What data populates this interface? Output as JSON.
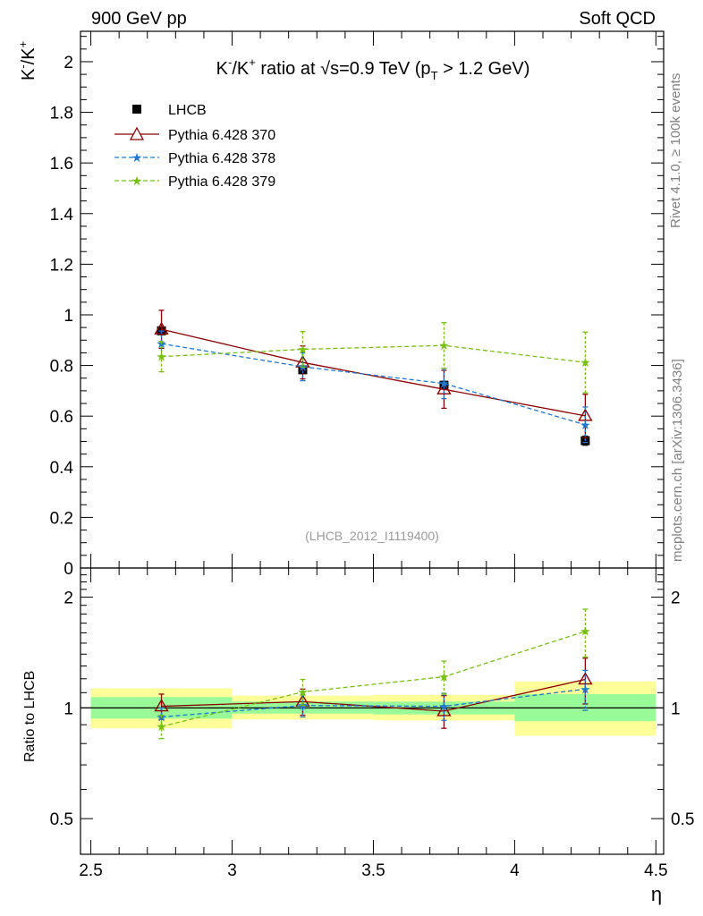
{
  "header": {
    "left": "900 GeV pp",
    "right": "Soft QCD"
  },
  "side_labels": {
    "rivet": "Rivet 4.1.0, ≥ 100k events",
    "mcplots": "mcplots.cern.ch [arXiv:1306.3436]"
  },
  "analysis_ref": "(LHCB_2012_I1119400)",
  "colors": {
    "data": "#000000",
    "pythia370": "#8b0000",
    "pythia378": "#1f78d0",
    "pythia379": "#76c012",
    "band_inner": "#98fb98",
    "band_outer": "#ffff99"
  },
  "chart_data": [
    {
      "panel": "main",
      "type": "scatter",
      "title_parts": {
        "k_minus": "K",
        "minus_sup": "-",
        "slash": "/K",
        "plus_sup": "+",
        "ratio_at": " ratio at ",
        "root": "√",
        "s_value": "s=0.9 TeV (p",
        "pt_sub": "T",
        "cut": " > 1.2 GeV)"
      },
      "ylabel_parts": {
        "k1": "K",
        "sup1": "-",
        "k2": "/K",
        "sup2": "+"
      },
      "xlim": [
        2.5,
        4.5
      ],
      "ylim": [
        0,
        2.12
      ],
      "yticks": [
        0,
        0.2,
        0.4,
        0.6,
        0.8,
        1,
        1.2,
        1.4,
        1.6,
        1.8,
        2
      ],
      "ytick_labels": [
        "0",
        "0.2",
        "0.4",
        "0.6",
        "0.8",
        "1",
        "1.2",
        "1.4",
        "1.6",
        "1.8",
        "2"
      ],
      "x": [
        2.75,
        3.25,
        3.75,
        4.25
      ],
      "series": [
        {
          "name": "LHCB",
          "style": "data",
          "values": [
            0.937,
            0.783,
            0.722,
            0.503
          ],
          "errors": [
            0.012,
            0.012,
            0.015,
            0.018
          ]
        },
        {
          "name": "Pythia 6.428 370",
          "style": "pythia370",
          "values": [
            0.943,
            0.812,
            0.706,
            0.601
          ],
          "errors": [
            0.075,
            0.065,
            0.075,
            0.085
          ]
        },
        {
          "name": "Pythia 6.428 378",
          "style": "pythia378",
          "values": [
            0.886,
            0.795,
            0.729,
            0.566
          ],
          "errors": [
            0.05,
            0.055,
            0.06,
            0.07
          ]
        },
        {
          "name": "Pythia 6.428 379",
          "style": "pythia379",
          "values": [
            0.835,
            0.864,
            0.879,
            0.812
          ],
          "errors": [
            0.06,
            0.07,
            0.09,
            0.12
          ]
        }
      ]
    },
    {
      "panel": "ratio",
      "type": "line",
      "ylabel": "Ratio to LHCB",
      "ylim": [
        0.4,
        2.4
      ],
      "yscale": "log",
      "yticks": [
        0.5,
        1,
        2
      ],
      "ytick_labels": [
        "0.5",
        "1",
        "2"
      ],
      "xticks": [
        2.5,
        3,
        3.5,
        4,
        4.5
      ],
      "xtick_labels": [
        "2.5",
        "3",
        "3.5",
        "4",
        "4.5"
      ],
      "xlabel": "η",
      "bins": [
        [
          2.5,
          3.0
        ],
        [
          3.0,
          3.5
        ],
        [
          3.5,
          4.0
        ],
        [
          4.0,
          4.5
        ]
      ],
      "band_inner": [
        [
          0.935,
          1.07
        ],
        [
          0.965,
          1.04
        ],
        [
          0.96,
          1.04
        ],
        [
          0.92,
          1.09
        ]
      ],
      "band_outer": [
        [
          0.88,
          1.13
        ],
        [
          0.93,
          1.08
        ],
        [
          0.925,
          1.085
        ],
        [
          0.84,
          1.18
        ]
      ],
      "x": [
        2.75,
        3.25,
        3.75,
        4.25
      ],
      "series": [
        {
          "name": "Pythia 6.428 370",
          "style": "pythia370",
          "values": [
            1.01,
            1.04,
            0.98,
            1.195
          ],
          "errors": [
            0.08,
            0.085,
            0.1,
            0.17
          ]
        },
        {
          "name": "Pythia 6.428 378",
          "style": "pythia378",
          "values": [
            0.945,
            1.015,
            1.01,
            1.125
          ],
          "errors": [
            0.055,
            0.07,
            0.085,
            0.14
          ]
        },
        {
          "name": "Pythia 6.428 379",
          "style": "pythia379",
          "values": [
            0.89,
            1.105,
            1.215,
            1.615
          ],
          "errors": [
            0.065,
            0.09,
            0.125,
            0.24
          ]
        }
      ]
    }
  ]
}
